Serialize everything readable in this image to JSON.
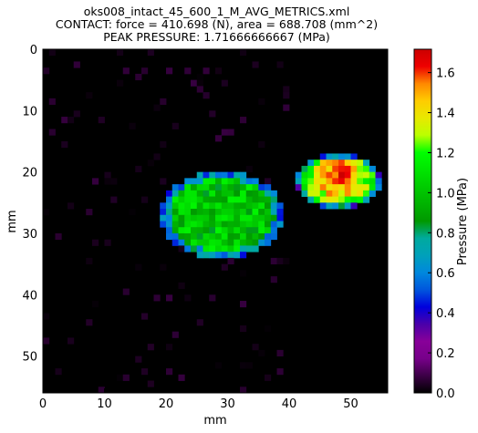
{
  "chart_data": {
    "type": "heatmap",
    "title_lines": [
      "oks008_intact_45_600_1_M_AVG_METRICS.xml",
      "CONTACT: force = 410.698 (N), area = 688.708 (mm^2)",
      "PEAK PRESSURE: 1.71666666667 (MPa)"
    ],
    "xlabel": "mm",
    "ylabel": "mm",
    "xlim": [
      0,
      56
    ],
    "ylim": [
      56,
      0
    ],
    "xticks": [
      "0",
      "10",
      "20",
      "30",
      "40",
      "50"
    ],
    "yticks": [
      "0",
      "10",
      "20",
      "30",
      "40",
      "50"
    ],
    "colorbar": {
      "label": "Pressure (MPa)",
      "range": [
        0.0,
        1.71666666667
      ],
      "ticks": [
        "0.0",
        "0.2",
        "0.4",
        "0.6",
        "0.8",
        "1.0",
        "1.2",
        "1.4",
        "1.6"
      ],
      "colormap": "nipy_spectral"
    },
    "background_value": 0.0,
    "contact_regions": [
      {
        "name": "left",
        "x_range": [
          19,
          39
        ],
        "y_range": [
          20,
          34
        ],
        "typical_pressure": 1.0,
        "edge_pressure": 0.55
      },
      {
        "name": "right",
        "x_range": [
          41,
          55
        ],
        "y_range": [
          17,
          26
        ],
        "peak_center": [
          48,
          21
        ],
        "peak_pressure": 1.71666666667
      }
    ]
  }
}
